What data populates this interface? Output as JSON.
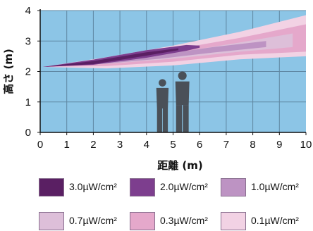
{
  "chart_data": {
    "type": "area",
    "xlabel": "距離 (m)",
    "ylabel": "高さ (m)",
    "xlim": [
      0,
      10
    ],
    "ylim": [
      0,
      4
    ],
    "x_ticks": [
      "0",
      "1",
      "2",
      "3",
      "4",
      "5",
      "6",
      "7",
      "8",
      "9",
      "10"
    ],
    "y_ticks": [
      "0",
      "1",
      "2",
      "3",
      "4"
    ],
    "grid": true,
    "background_color": "#8cc5e6",
    "grid_color": "#5f87a2",
    "source_point": {
      "x": 0.1,
      "y": 2.15
    },
    "series": [
      {
        "name": "0.1µW/cm²",
        "color": "#f2d2e4",
        "upper": [
          [
            2.5,
            2.47
          ],
          [
            5,
            2.85
          ],
          [
            7.5,
            3.3
          ],
          [
            10,
            3.85
          ]
        ],
        "lower": [
          [
            2.5,
            2.1
          ],
          [
            5,
            2.2
          ],
          [
            7.5,
            2.4
          ],
          [
            10,
            2.5
          ]
        ]
      },
      {
        "name": "0.3µW/cm²",
        "color": "#e5a8cb",
        "upper": [
          [
            2.5,
            2.42
          ],
          [
            5,
            2.72
          ],
          [
            7.5,
            3.1
          ],
          [
            10,
            3.55
          ]
        ],
        "lower": [
          [
            2.5,
            2.18
          ],
          [
            5,
            2.32
          ],
          [
            7.5,
            2.55
          ],
          [
            10,
            2.65
          ]
        ]
      },
      {
        "name": "0.7µW/cm²",
        "color": "#ddbfd9",
        "upper": [
          [
            2.5,
            2.37
          ],
          [
            5,
            2.6
          ],
          [
            7.5,
            2.95
          ],
          [
            9.5,
            3.25
          ]
        ],
        "lower": [
          [
            2.5,
            2.25
          ],
          [
            5,
            2.42
          ],
          [
            7.5,
            2.65
          ],
          [
            9.5,
            2.8
          ]
        ]
      },
      {
        "name": "1.0µW/cm²",
        "color": "#bd93c3",
        "upper": [
          [
            2.5,
            2.35
          ],
          [
            4.5,
            2.55
          ],
          [
            6.5,
            2.8
          ],
          [
            8.5,
            3.0
          ]
        ],
        "lower": [
          [
            2.5,
            2.26
          ],
          [
            4.5,
            2.42
          ],
          [
            6.5,
            2.62
          ],
          [
            8.5,
            2.8
          ]
        ]
      },
      {
        "name": "2.0µW/cm²",
        "color": "#7d3e8e",
        "upper": [
          [
            2,
            2.39
          ],
          [
            4,
            2.7
          ],
          [
            5.5,
            2.87
          ],
          [
            6,
            2.85
          ]
        ],
        "lower": [
          [
            2,
            2.22
          ],
          [
            4,
            2.45
          ],
          [
            5.5,
            2.68
          ],
          [
            6,
            2.78
          ]
        ]
      },
      {
        "name": "3.0µW/cm²",
        "color": "#5a1f63",
        "upper": [
          [
            2,
            2.34
          ],
          [
            4,
            2.63
          ],
          [
            5.2,
            2.76
          ]
        ],
        "lower": [
          [
            2,
            2.24
          ],
          [
            4,
            2.52
          ],
          [
            5.2,
            2.7
          ]
        ]
      }
    ],
    "figures": [
      {
        "name": "person-short",
        "x": 4.6,
        "height": 1.75
      },
      {
        "name": "person-tall",
        "x": 5.35,
        "height": 2.0
      }
    ],
    "legend": [
      {
        "label": "3.0µW/cm²",
        "color": "#5a1f63"
      },
      {
        "label": "2.0µW/cm²",
        "color": "#7d3e8e"
      },
      {
        "label": "1.0µW/cm²",
        "color": "#bd93c3"
      },
      {
        "label": "0.7µW/cm²",
        "color": "#ddbfd9"
      },
      {
        "label": "0.3µW/cm²",
        "color": "#e5a8cb"
      },
      {
        "label": "0.1µW/cm²",
        "color": "#f2d2e4"
      }
    ]
  }
}
